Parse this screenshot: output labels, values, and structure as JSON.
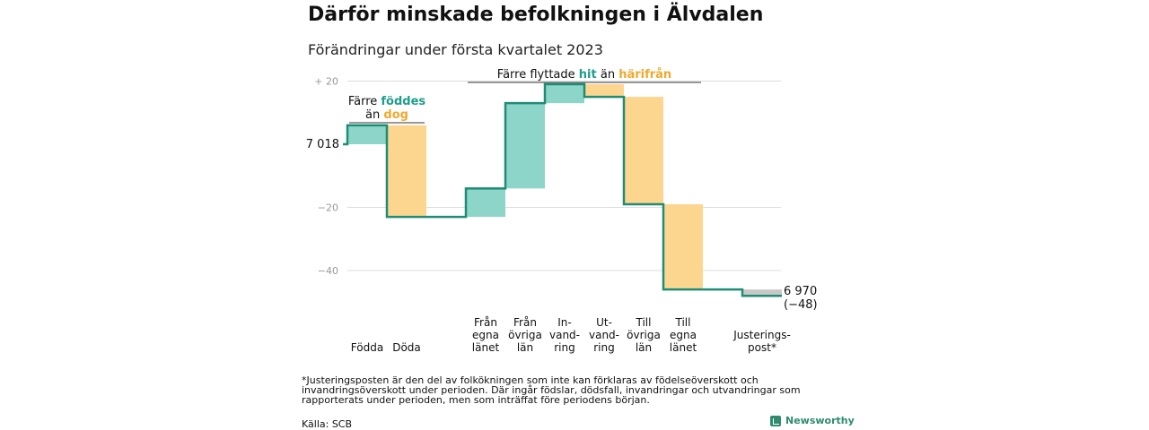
{
  "title": "Därför minskade befolkningen i Älvdalen",
  "subtitle": "Förändringar under första kvartalet 2023",
  "footnote": "*Justeringsposten är den del av folkökningen som inte kan förklaras av födelseöverskott och invandringsöverskott under perioden. Där ingår födslar, dödsfall, invandringar och utvandringar som rapporterats under perioden, men som inträffat före periodens början.",
  "source": "Källa: SCB",
  "brand": "Newsworthy",
  "colors": {
    "increase": "#8dd5c9",
    "decrease": "#fcd68f",
    "adjustment": "#c8c8c8",
    "line": "#1f8c75",
    "accent_teal": "#1f9e8a",
    "accent_orange": "#f0a92c",
    "grid": "#dddddd"
  },
  "chart_data": {
    "type": "waterfall",
    "start_label": "7 018",
    "end_label_line1": "6 970",
    "end_label_line2": "(−48)",
    "yticks": [
      {
        "value": 20,
        "label": "+ 20"
      },
      {
        "value": -20,
        "label": "−20"
      },
      {
        "value": -40,
        "label": "−40"
      }
    ],
    "ylim": [
      -50,
      22
    ],
    "steps": [
      {
        "label_lines": [
          "Födda"
        ],
        "change": 6,
        "kind": "increase"
      },
      {
        "label_lines": [
          "Döda"
        ],
        "change": -29,
        "kind": "decrease"
      },
      {
        "label_lines": [
          ""
        ],
        "change": 0,
        "kind": "none"
      },
      {
        "label_lines": [
          "Från",
          "egna",
          "länet"
        ],
        "change": 9,
        "kind": "increase"
      },
      {
        "label_lines": [
          "Från",
          "övriga",
          "län"
        ],
        "change": 27,
        "kind": "increase"
      },
      {
        "label_lines": [
          "In-",
          "vand-",
          "ring"
        ],
        "change": 6,
        "kind": "increase"
      },
      {
        "label_lines": [
          "Ut-",
          "vand-",
          "ring"
        ],
        "change": -4,
        "kind": "decrease"
      },
      {
        "label_lines": [
          "Till",
          "övriga",
          "län"
        ],
        "change": -34,
        "kind": "decrease"
      },
      {
        "label_lines": [
          "Till",
          "egna",
          "länet"
        ],
        "change": -27,
        "kind": "decrease"
      },
      {
        "label_lines": [
          ""
        ],
        "change": 0,
        "kind": "none"
      },
      {
        "label_lines": [
          "Justerings-",
          "post*"
        ],
        "change": -2,
        "kind": "adjustment"
      }
    ],
    "annotations": [
      {
        "from": 0,
        "to": 1,
        "parts": [
          {
            "line": 0,
            "text": "Färre ",
            "color": "#111111",
            "bold": false
          },
          {
            "line": 0,
            "text": "föddes",
            "color": "#1f9e8a",
            "bold": true
          },
          {
            "line": 1,
            "text": "än ",
            "color": "#111111",
            "bold": false
          },
          {
            "line": 1,
            "text": "dog",
            "color": "#f0a92c",
            "bold": true
          }
        ]
      },
      {
        "from": 3,
        "to": 8,
        "parts": [
          {
            "line": 0,
            "text": "Färre flyttade ",
            "color": "#111111",
            "bold": false
          },
          {
            "line": 0,
            "text": "hit",
            "color": "#1f9e8a",
            "bold": true
          },
          {
            "line": 0,
            "text": " än ",
            "color": "#111111",
            "bold": false
          },
          {
            "line": 0,
            "text": "härifrån",
            "color": "#f0a92c",
            "bold": true
          }
        ]
      }
    ]
  }
}
